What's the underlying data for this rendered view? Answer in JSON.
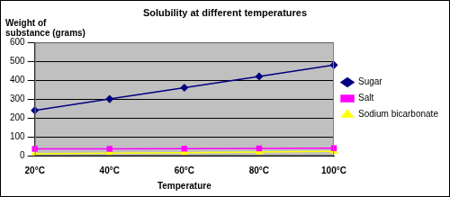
{
  "chart_data": {
    "type": "line",
    "title": "Solubility at different temperatures",
    "x_label": "Temperature",
    "y_label": "Weight of substance (grams)",
    "categories": [
      "20°C",
      "40°C",
      "60°C",
      "80°C",
      "100°C"
    ],
    "series": [
      {
        "name": "Sugar",
        "color": "#000080",
        "marker": "diamond",
        "values": [
          240,
          300,
          360,
          420,
          480
        ]
      },
      {
        "name": "Salt",
        "color": "#ff00ff",
        "marker": "square",
        "values": [
          36,
          36,
          37,
          38,
          39
        ]
      },
      {
        "name": "Sodium bicarbonate",
        "color": "#ffff00",
        "marker": "triangle",
        "values": [
          10,
          13,
          16,
          19,
          23
        ]
      }
    ],
    "ylim": [
      0,
      600
    ],
    "yticks": [
      0,
      100,
      200,
      300,
      400,
      500,
      600
    ],
    "grid": true,
    "legend": "right"
  }
}
